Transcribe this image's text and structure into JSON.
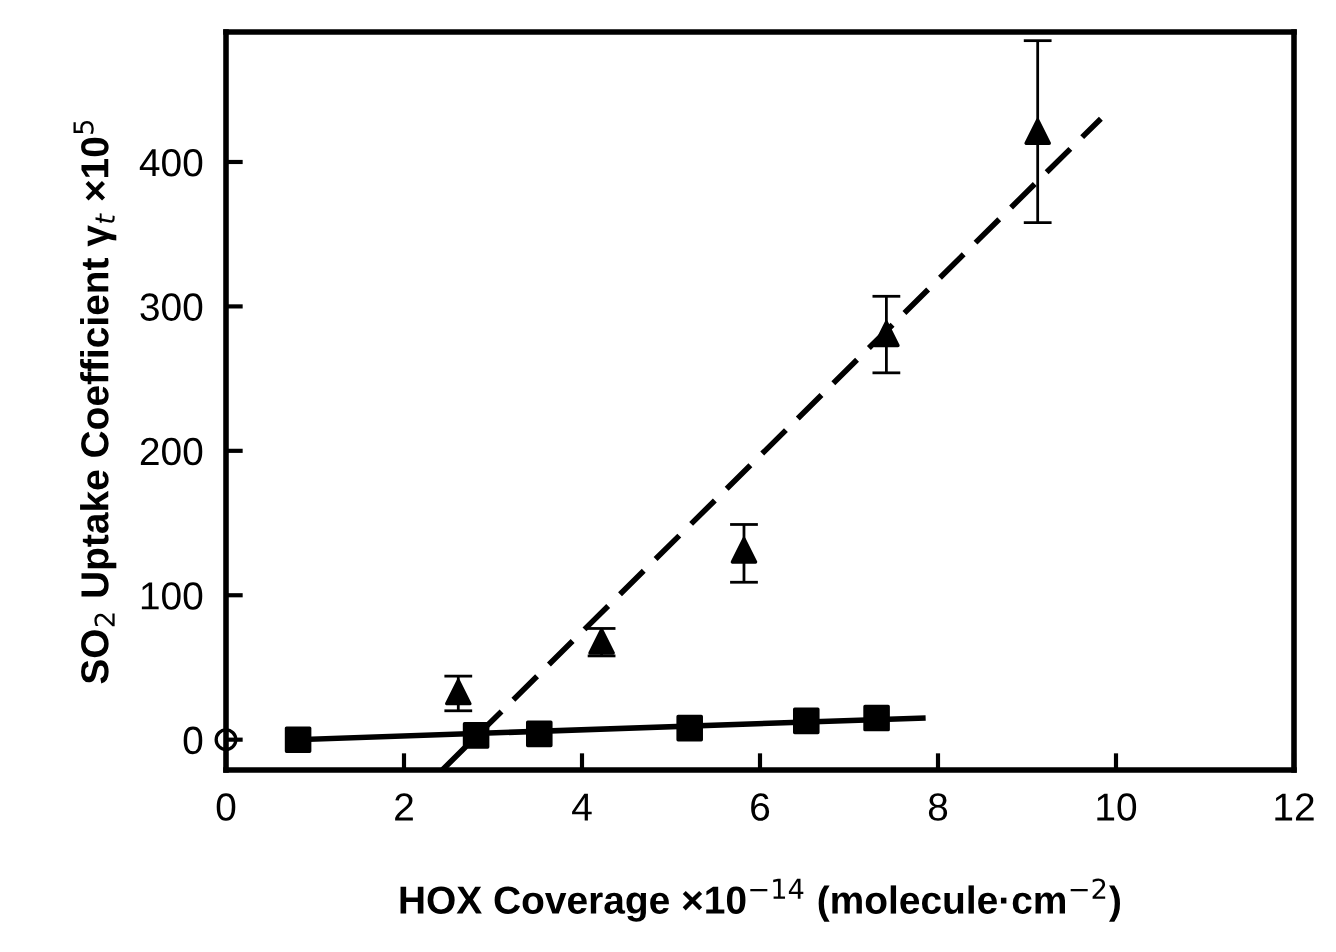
{
  "chart_data": {
    "type": "scatter",
    "xlabel": "HOX Coverage ×10$^{−14}$ (molecule·cm$^{−2}$)",
    "ylabel": "SO$_{2}$ Uptake Coefficient γ$_{t}$ ×10$^{5}$",
    "series": [
      {
        "type": "line",
        "color": "#000000",
        "x": [
          2.43,
          9.83
        ],
        "values": [
          -21,
          430
        ],
        "line_style": "dashed",
        "marker": "none"
      },
      {
        "type": "line",
        "color": "#000000",
        "x": [
          0.8,
          7.83
        ],
        "values": [
          0,
          15
        ],
        "line_style": "solid",
        "marker": "none"
      },
      {
        "color": "#000000",
        "marker": "triangle",
        "x": [
          2.61,
          4.22,
          5.82,
          7.42,
          9.12
        ],
        "values": [
          33,
          68,
          131,
          281,
          421
        ],
        "errors": [
          [
            20,
            44
          ],
          [
            58,
            77
          ],
          [
            109,
            149
          ],
          [
            254,
            307
          ],
          [
            358,
            484
          ]
        ]
      },
      {
        "color": "#000000",
        "marker": "square",
        "x": [
          0.81,
          2.81,
          3.52,
          5.21,
          6.52,
          7.31
        ],
        "values": [
          0,
          3,
          4,
          8,
          13,
          15
        ]
      },
      {
        "color": "#000000",
        "marker": "circle",
        "x": [
          0
        ],
        "values": [
          0
        ]
      }
    ],
    "xlim": [
      0,
      12
    ],
    "ylim": [
      -21,
      490
    ],
    "xticks": [
      0,
      2,
      4,
      6,
      8,
      10,
      12
    ],
    "yticks": [
      0,
      100,
      200,
      300,
      400
    ],
    "grid": false,
    "legend": false
  }
}
